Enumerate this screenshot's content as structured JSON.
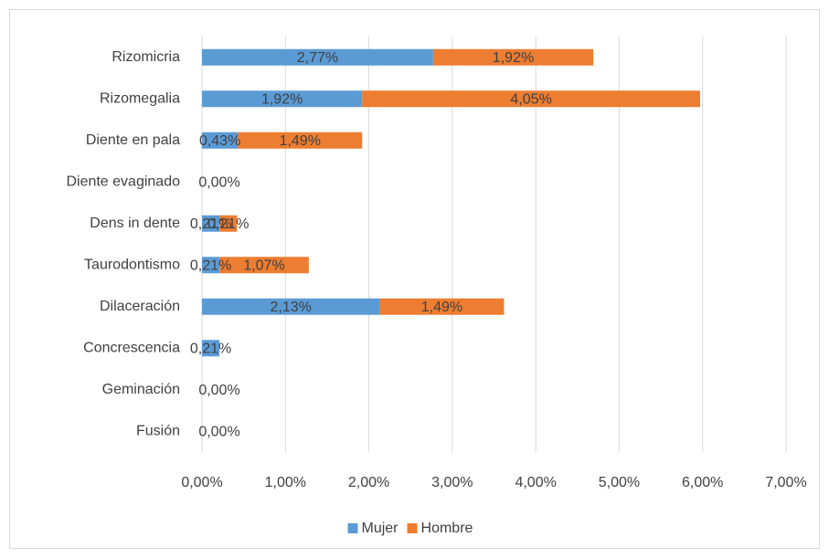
{
  "chart_data": {
    "type": "stacked_barh",
    "categories": [
      "Rizomicria",
      "Rizomegalia",
      "Diente en pala",
      "Diente evaginado",
      "Dens in dente",
      "Taurodontismo",
      "Dilaceración",
      "Concrescencia",
      "Geminación",
      "Fusión"
    ],
    "series": [
      {
        "name": "Mujer",
        "color": "#5b9bd5",
        "values": [
          2.77,
          1.92,
          0.43,
          0,
          0.21,
          0.21,
          2.13,
          0.21,
          0,
          0
        ],
        "value_labels": [
          "2,77%",
          "1,92%",
          "0,43%",
          "0,00%",
          "0,21%",
          "0,21%",
          "2,13%",
          "0,21%",
          "0,00%",
          "0,00%"
        ]
      },
      {
        "name": "Hombre",
        "color": "#ed7d31",
        "values": [
          1.92,
          4.05,
          1.49,
          0,
          0.21,
          1.07,
          1.49,
          0,
          0,
          0
        ],
        "value_labels": [
          "1,92%",
          "4,05%",
          "1,49%",
          null,
          "0,21%",
          "1,07%",
          "1,49%",
          null,
          null,
          null
        ]
      }
    ],
    "xlim": [
      0,
      7
    ],
    "xticks": [
      {
        "value": 0,
        "label": "0,00%"
      },
      {
        "value": 1,
        "label": "1,00%"
      },
      {
        "value": 2,
        "label": "2,00%"
      },
      {
        "value": 3,
        "label": "3,00%"
      },
      {
        "value": 4,
        "label": "4,00%"
      },
      {
        "value": 5,
        "label": "5,00%"
      },
      {
        "value": 6,
        "label": "6,00%"
      },
      {
        "value": 7,
        "label": "7,00%"
      }
    ],
    "grid": true,
    "legend": "bottom"
  }
}
